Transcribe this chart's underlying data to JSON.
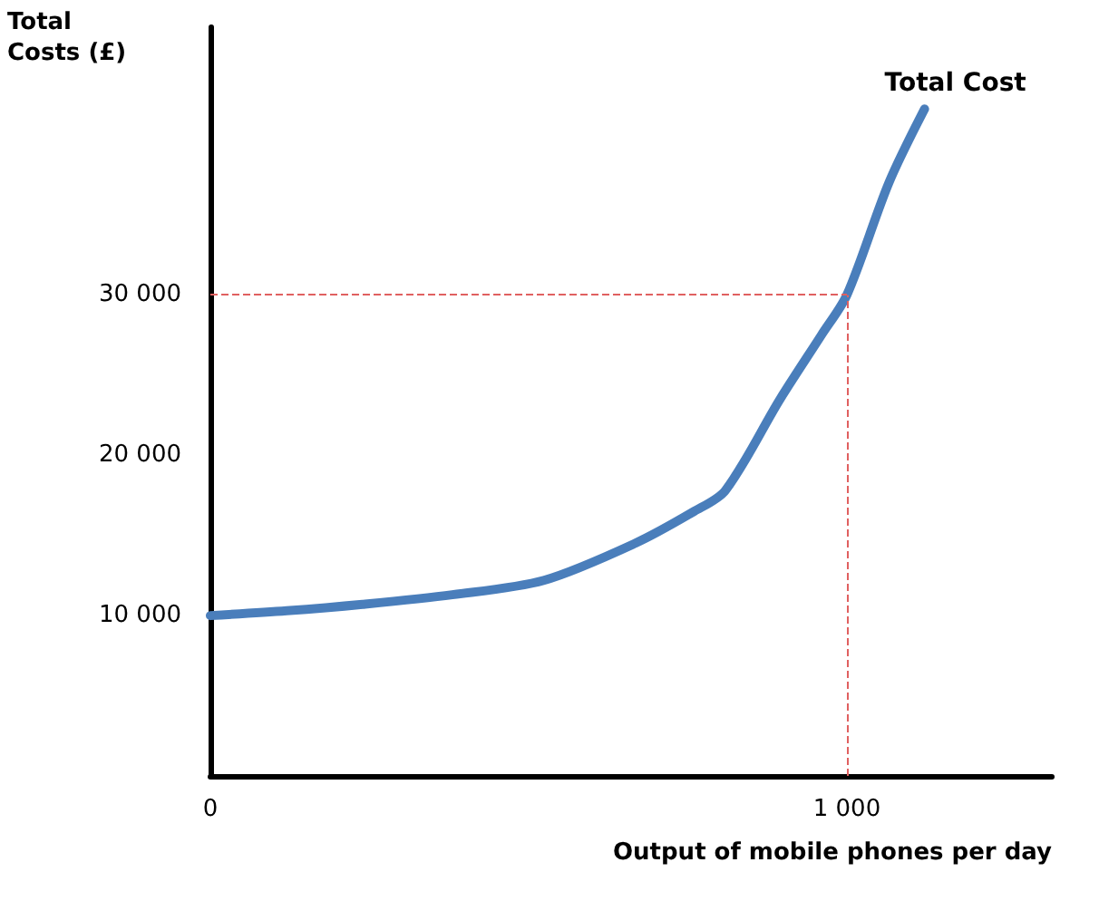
{
  "chart_data": {
    "type": "line",
    "xlabel": "Output of mobile phones per day",
    "ylabel": "Total Costs (£)",
    "x": [
      0,
      120,
      239,
      380,
      524,
      667,
      760,
      809,
      895,
      960,
      1000,
      1066,
      1122
    ],
    "series": [
      {
        "name": "Total Cost",
        "color": "#4a7ebb",
        "values": [
          10000,
          10300,
          10700,
          11300,
          12200,
          14500,
          16500,
          17800,
          23500,
          27500,
          30000,
          37000,
          41600
        ]
      }
    ],
    "xlim": [
      0,
      1322
    ],
    "xticks": [
      {
        "value": 0,
        "label": "0"
      },
      {
        "value": 1000,
        "label": "1 000"
      }
    ],
    "ylim": [
      0,
      46700
    ],
    "yticks": [
      {
        "value": 0,
        "label": null
      },
      {
        "value": 10000,
        "label": "10 000"
      },
      {
        "value": 20000,
        "label": "20 000"
      },
      {
        "value": 30000,
        "label": "30 000"
      }
    ],
    "ref_lines": [
      {
        "axis": "y",
        "value": 30000,
        "color": "#e06060",
        "line_style": "dashed"
      },
      {
        "axis": "x",
        "value": 1000,
        "color": "#e06060",
        "line_style": "dashed"
      }
    ],
    "grid": false,
    "legend": false,
    "marker": "none",
    "line_style": "solid"
  }
}
